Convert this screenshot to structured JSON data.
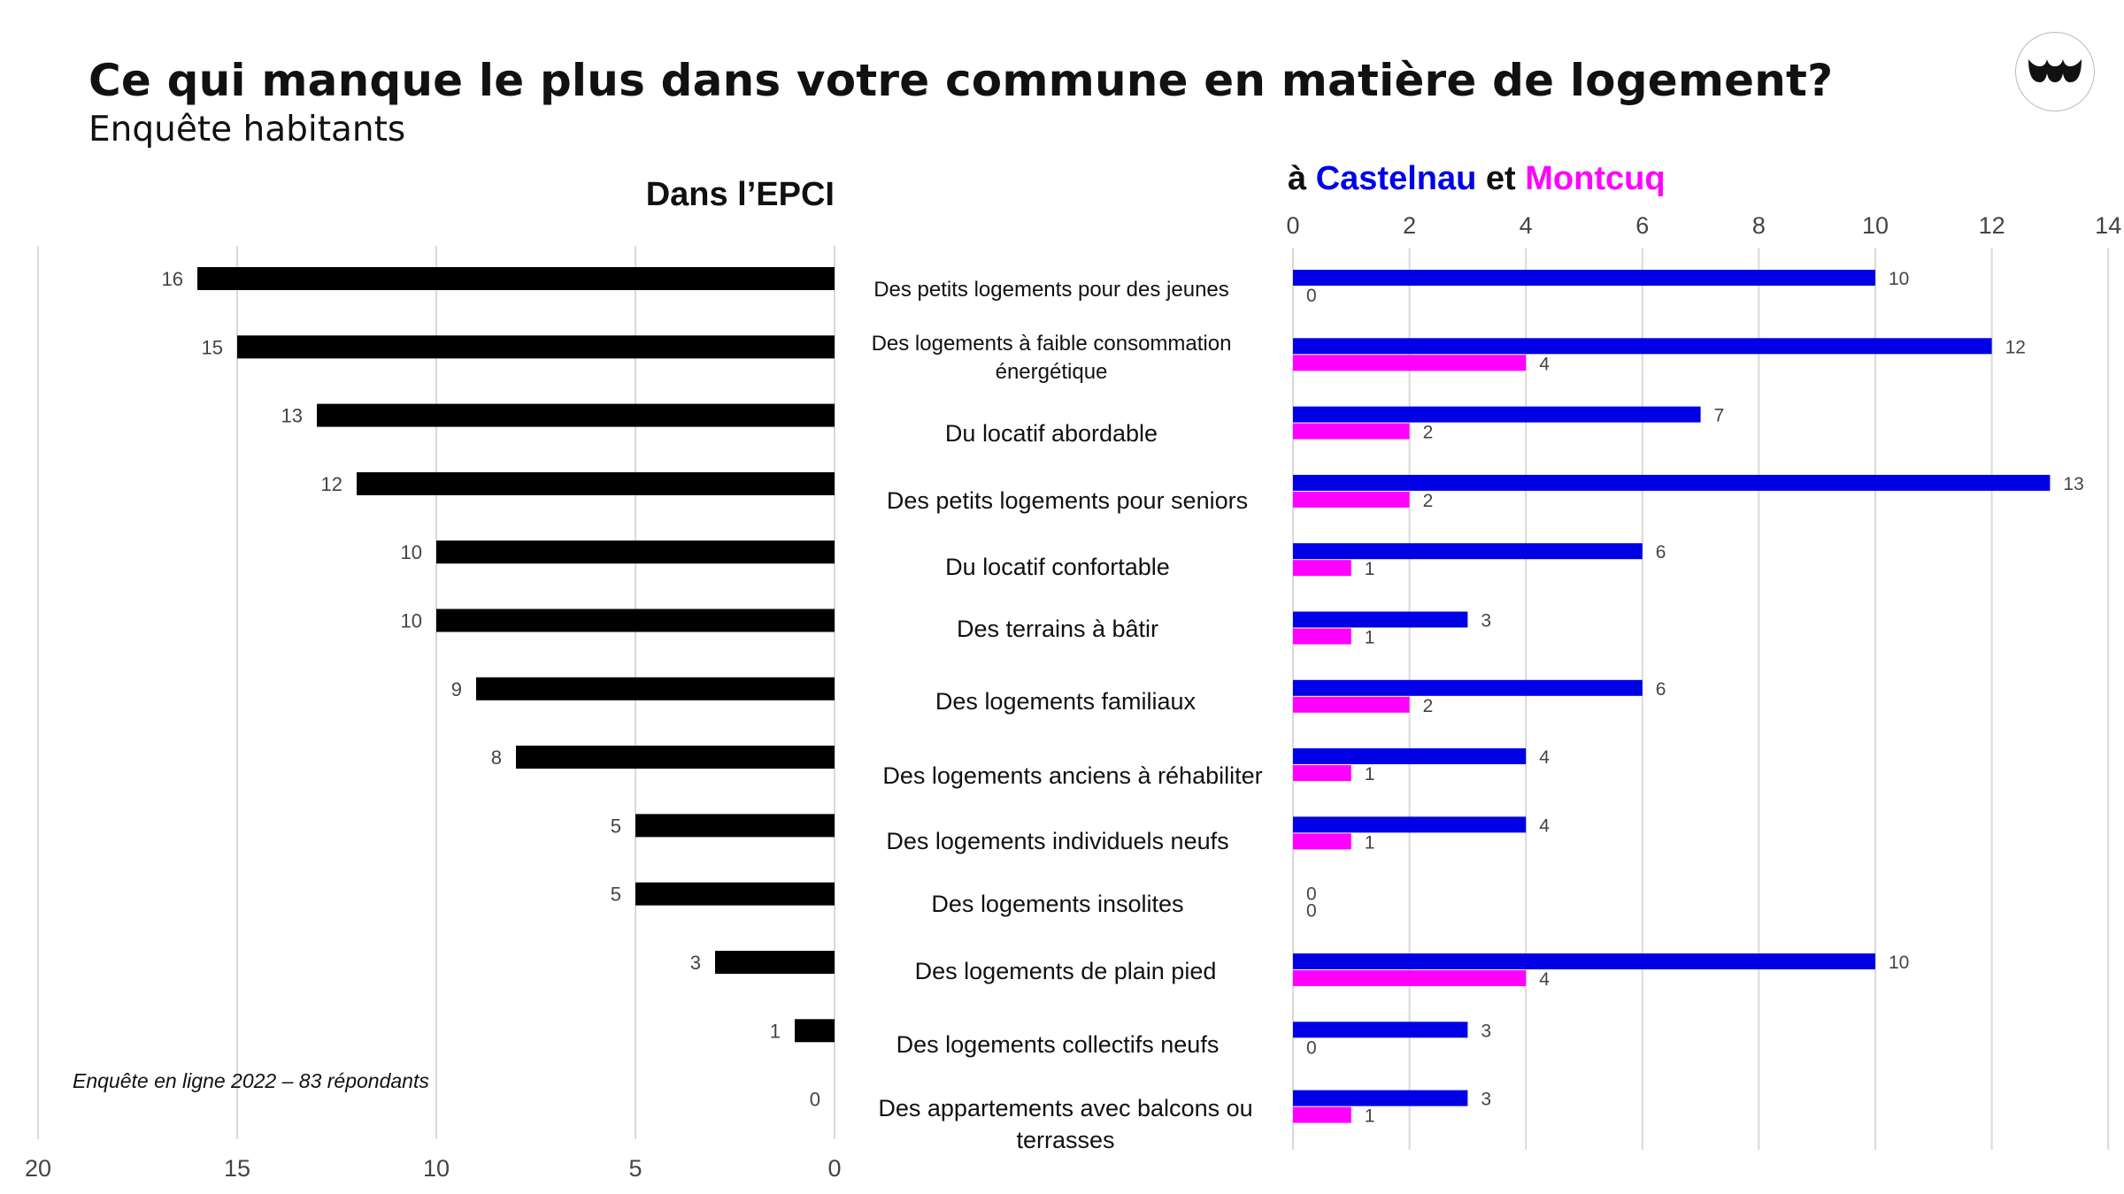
{
  "header": {
    "title": "Ce qui manque le plus dans votre commune en matière de logement?",
    "subtitle": "Enquête habitants",
    "logo_icon": "brand-logo-icon"
  },
  "footnote": "Enquête en ligne 2022 – 83 répondants",
  "colors": {
    "epci": "#000000",
    "castelnau": "#0000e6",
    "montcuq": "#ff00ff",
    "grid": "#d9d9d9"
  },
  "chart_data": [
    {
      "type": "bar",
      "orientation": "horizontal",
      "direction": "right-to-left",
      "title": "Dans l’EPCI",
      "categories": [
        "Des petits logements pour des jeunes",
        "Des logements à faible consommation énergétique",
        "Du locatif abordable",
        "Des petits logements pour seniors",
        "Du locatif confortable",
        "Des terrains à bâtir",
        "Des logements familiaux",
        "Des logements anciens à réhabiliter",
        "Des logements individuels neufs",
        "Des logements insolites",
        "Des logements de plain pied",
        "Des logements collectifs neufs",
        "Des appartements avec balcons ou terrasses"
      ],
      "values": [
        16,
        15,
        13,
        12,
        10,
        10,
        9,
        8,
        5,
        5,
        3,
        1,
        0
      ],
      "xlim": [
        0,
        20
      ],
      "xticks": [
        "20",
        "15",
        "10",
        "5",
        "0"
      ],
      "grid": true
    },
    {
      "type": "bar",
      "orientation": "horizontal",
      "title_parts": [
        {
          "text": "à ",
          "color": "#111111"
        },
        {
          "text": "Castelnau",
          "color": "#0000e6"
        },
        {
          "text": " et ",
          "color": "#111111"
        },
        {
          "text": "Montcuq",
          "color": "#ff00ff"
        }
      ],
      "series": [
        {
          "name": "Castelnau",
          "values": [
            10,
            12,
            7,
            13,
            6,
            3,
            6,
            4,
            4,
            0,
            10,
            3,
            3
          ]
        },
        {
          "name": "Montcuq",
          "values": [
            0,
            4,
            2,
            2,
            1,
            1,
            2,
            1,
            1,
            0,
            4,
            0,
            1
          ]
        }
      ],
      "xlim": [
        0,
        14
      ],
      "xticks": [
        "0",
        "2",
        "4",
        "6",
        "8",
        "10",
        "12",
        "14"
      ],
      "axis_position": "top",
      "grid": true
    }
  ]
}
